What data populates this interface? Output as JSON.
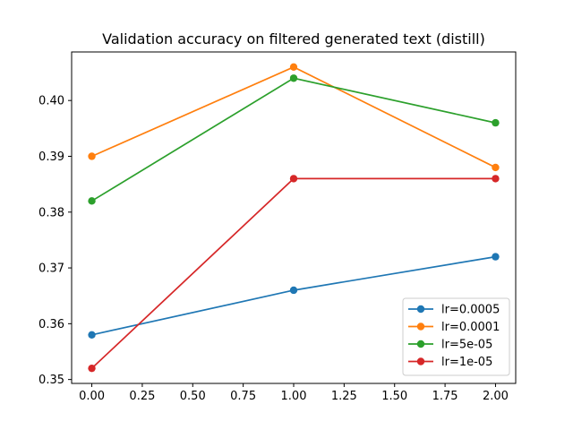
{
  "chart_data": {
    "type": "line",
    "title": "Validation accuracy on filtered generated text (distill)",
    "xlabel": "",
    "ylabel": "",
    "x": [
      0,
      1,
      2
    ],
    "xlim": [
      -0.1,
      2.1
    ],
    "ylim": [
      0.3493,
      0.4087
    ],
    "xticks": [
      0.0,
      0.25,
      0.5,
      0.75,
      1.0,
      1.25,
      1.5,
      1.75,
      2.0
    ],
    "xtick_labels": [
      "0.00",
      "0.25",
      "0.50",
      "0.75",
      "1.00",
      "1.25",
      "1.50",
      "1.75",
      "2.00"
    ],
    "yticks": [
      0.35,
      0.36,
      0.37,
      0.38,
      0.39,
      0.4
    ],
    "ytick_labels": [
      "0.35",
      "0.36",
      "0.37",
      "0.38",
      "0.39",
      "0.40"
    ],
    "grid": false,
    "legend_position": "lower-right",
    "series": [
      {
        "name": "lr=0.0005",
        "color": "#1f77b4",
        "values": [
          0.358,
          0.366,
          0.372
        ]
      },
      {
        "name": "lr=0.0001",
        "color": "#ff7f0e",
        "values": [
          0.39,
          0.406,
          0.388
        ]
      },
      {
        "name": "lr=5e-05",
        "color": "#2ca02c",
        "values": [
          0.382,
          0.404,
          0.396
        ]
      },
      {
        "name": "lr=1e-05",
        "color": "#d62728",
        "values": [
          0.352,
          0.386,
          0.386
        ]
      }
    ]
  }
}
